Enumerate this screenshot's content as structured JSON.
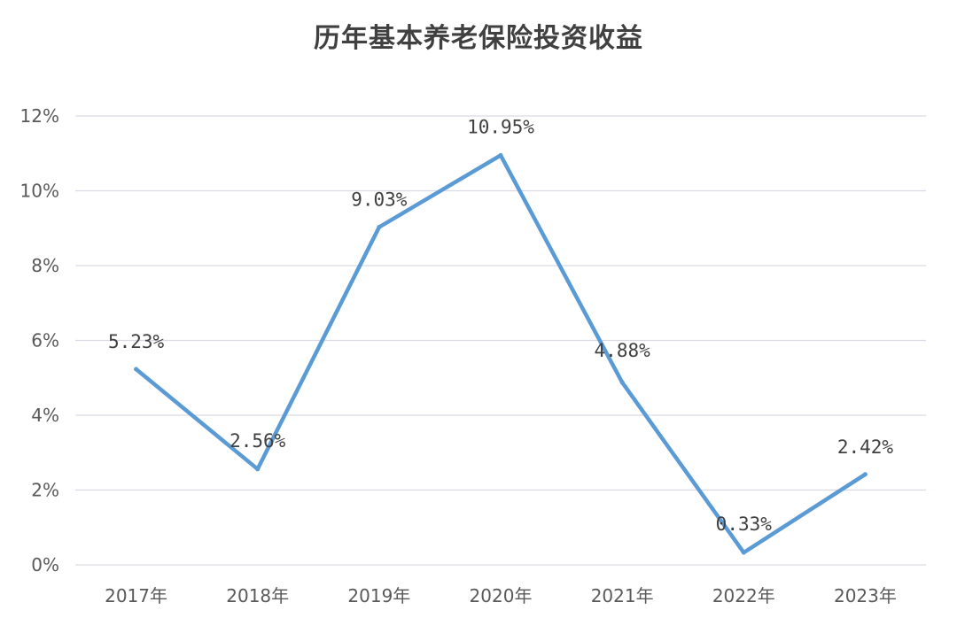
{
  "chart_data": {
    "type": "line",
    "title": "历年基本养老保险投资收益",
    "xlabel": "",
    "ylabel": "",
    "categories": [
      "2017年",
      "2018年",
      "2019年",
      "2020年",
      "2021年",
      "2022年",
      "2023年"
    ],
    "series": [
      {
        "values": [
          5.23,
          2.56,
          9.03,
          10.95,
          4.88,
          0.33,
          2.42
        ],
        "data_labels": [
          "5.23%",
          "2.56%",
          "9.03%",
          "10.95%",
          "4.88%",
          "0.33%",
          "2.42%"
        ],
        "color": "#5b9bd5"
      }
    ],
    "ylim": [
      0,
      12
    ],
    "yticks": [
      0,
      2,
      4,
      6,
      8,
      10,
      12
    ],
    "ytick_labels": [
      "0%",
      "2%",
      "4%",
      "6%",
      "8%",
      "10%",
      "12%"
    ],
    "grid": true,
    "legend": "none",
    "gridline_color": "#d9d9e6"
  }
}
